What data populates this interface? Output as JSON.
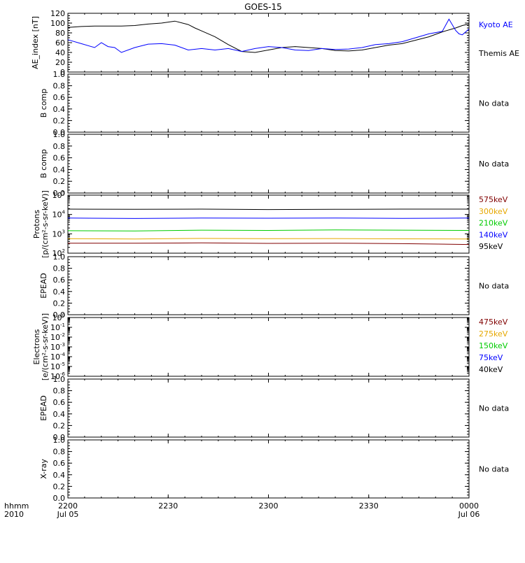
{
  "title": "GOES-15",
  "footer": {
    "left_top": "hhmm",
    "left_bottom": "2010"
  },
  "colors": {
    "black": "#000000",
    "blue": "#0000ff",
    "green": "#00cc00",
    "orange": "#e6a800",
    "darkred": "#800000"
  },
  "x_axis": {
    "ticks": [
      {
        "time": "2200",
        "date": "Jul 05"
      },
      {
        "time": "2230",
        "date": ""
      },
      {
        "time": "2300",
        "date": ""
      },
      {
        "time": "2330",
        "date": ""
      },
      {
        "time": "0000",
        "date": "Jul 06"
      }
    ],
    "range_minutes": [
      0,
      120
    ]
  },
  "chart_data": [
    {
      "type": "line",
      "ylabel": "AE_index [nT]",
      "ylim": [
        0,
        120
      ],
      "yticks": [
        "0",
        "20",
        "40",
        "60",
        "80",
        "100",
        "120"
      ],
      "legend": [
        {
          "text": "Kyoto AE",
          "color": "#0000ff"
        },
        {
          "text": "Themis AE",
          "color": "#000000"
        }
      ],
      "series": [
        {
          "name": "Themis AE",
          "color": "#000000",
          "x": [
            0,
            4,
            8,
            12,
            16,
            20,
            24,
            28,
            32,
            36,
            38,
            40,
            44,
            48,
            52,
            56,
            60,
            64,
            68,
            72,
            76,
            80,
            84,
            88,
            92,
            96,
            100,
            104,
            108,
            112,
            116,
            118,
            120
          ],
          "y": [
            91,
            93,
            94,
            94,
            94,
            95,
            98,
            100,
            104,
            97,
            90,
            84,
            72,
            56,
            42,
            40,
            45,
            50,
            52,
            50,
            48,
            44,
            43,
            45,
            50,
            55,
            58,
            65,
            72,
            82,
            90,
            95,
            98
          ]
        },
        {
          "name": "Kyoto AE",
          "color": "#0000ff",
          "x": [
            0,
            4,
            8,
            10,
            12,
            14,
            16,
            20,
            24,
            28,
            32,
            36,
            40,
            44,
            48,
            52,
            56,
            60,
            64,
            68,
            72,
            76,
            80,
            84,
            88,
            92,
            96,
            100,
            104,
            108,
            112,
            114,
            116,
            117,
            118,
            119,
            120
          ],
          "y": [
            66,
            58,
            50,
            60,
            52,
            50,
            40,
            50,
            57,
            58,
            55,
            45,
            48,
            45,
            48,
            42,
            48,
            52,
            50,
            45,
            44,
            48,
            46,
            47,
            50,
            56,
            58,
            62,
            70,
            78,
            83,
            108,
            85,
            78,
            76,
            82,
            88
          ]
        }
      ]
    },
    {
      "type": "line",
      "ylabel": "B comp",
      "ylim": [
        0,
        1
      ],
      "yticks": [
        "0.0",
        "0.2",
        "0.4",
        "0.6",
        "0.8",
        "1.0"
      ],
      "note": "No data",
      "series": []
    },
    {
      "type": "line",
      "ylabel": "B comp",
      "ylim": [
        0,
        1
      ],
      "yticks": [
        "0.0",
        "0.2",
        "0.4",
        "0.6",
        "0.8",
        "1.0"
      ],
      "note": "No data",
      "series": []
    },
    {
      "type": "line",
      "ylabel_lines": [
        "Protons",
        "[p/(cm²-s-sr-keV)]"
      ],
      "scale": "log",
      "ylim": [
        100,
        100000
      ],
      "yticks": [
        {
          "base": "10",
          "exp": "2"
        },
        {
          "base": "10",
          "exp": "3"
        },
        {
          "base": "10",
          "exp": "4"
        },
        {
          "base": "10",
          "exp": "5"
        }
      ],
      "legend": [
        {
          "text": "575keV",
          "color": "#800000"
        },
        {
          "text": "300keV",
          "color": "#e6a800"
        },
        {
          "text": "210keV",
          "color": "#00cc00"
        },
        {
          "text": "140keV",
          "color": "#0000ff"
        },
        {
          "text": "95keV",
          "color": "#000000"
        }
      ],
      "series": [
        {
          "name": "95keV",
          "color": "#000000",
          "x": [
            0,
            20,
            40,
            60,
            80,
            100,
            120
          ],
          "y": [
            19000,
            18500,
            19000,
            18000,
            18500,
            19000,
            19000
          ]
        },
        {
          "name": "140keV",
          "color": "#0000ff",
          "x": [
            0,
            20,
            40,
            60,
            80,
            100,
            120
          ],
          "y": [
            6500,
            6200,
            6600,
            6400,
            6500,
            6300,
            6500
          ]
        },
        {
          "name": "210keV",
          "color": "#00cc00",
          "x": [
            0,
            20,
            40,
            60,
            80,
            100,
            120
          ],
          "y": [
            1450,
            1400,
            1550,
            1500,
            1600,
            1550,
            1500
          ]
        },
        {
          "name": "300keV",
          "color": "#e6a800",
          "x": [
            0,
            20,
            40,
            60,
            80,
            100,
            120
          ],
          "y": [
            560,
            540,
            580,
            560,
            570,
            550,
            540
          ]
        },
        {
          "name": "575keV",
          "color": "#800000",
          "x": [
            0,
            20,
            40,
            60,
            80,
            100,
            120
          ],
          "y": [
            330,
            330,
            340,
            320,
            330,
            310,
            280
          ]
        }
      ]
    },
    {
      "type": "line",
      "ylabel": "EPEAD",
      "ylim": [
        0,
        1
      ],
      "yticks": [
        "0.0",
        "0.2",
        "0.4",
        "0.6",
        "0.8",
        "1.0"
      ],
      "note": "No data",
      "series": []
    },
    {
      "type": "line",
      "ylabel_lines": [
        "Electrons",
        "[e/(cm²-s-sr-keV)]"
      ],
      "scale": "log",
      "ylim": [
        1e-06,
        1
      ],
      "yticks": [
        {
          "base": "10",
          "exp": "-6"
        },
        {
          "base": "10",
          "exp": "-5"
        },
        {
          "base": "10",
          "exp": "-4"
        },
        {
          "base": "10",
          "exp": "-3"
        },
        {
          "base": "10",
          "exp": "-2"
        },
        {
          "base": "10",
          "exp": "-1"
        },
        {
          "base": "10",
          "exp": "0"
        }
      ],
      "legend": [
        {
          "text": "475keV",
          "color": "#800000"
        },
        {
          "text": "275keV",
          "color": "#e6a800"
        },
        {
          "text": "150keV",
          "color": "#00cc00"
        },
        {
          "text": "75keV",
          "color": "#0000ff"
        },
        {
          "text": "40keV",
          "color": "#000000"
        }
      ],
      "series": []
    },
    {
      "type": "line",
      "ylabel": "EPEAD",
      "ylim": [
        0,
        1
      ],
      "yticks": [
        "0.0",
        "0.2",
        "0.4",
        "0.6",
        "0.8",
        "1.0"
      ],
      "note": "No data",
      "series": []
    },
    {
      "type": "line",
      "ylabel": "X-ray",
      "ylim": [
        0,
        1
      ],
      "yticks": [
        "0.0",
        "0.2",
        "0.4",
        "0.6",
        "0.8",
        "1.0"
      ],
      "note": "No data",
      "series": []
    }
  ]
}
